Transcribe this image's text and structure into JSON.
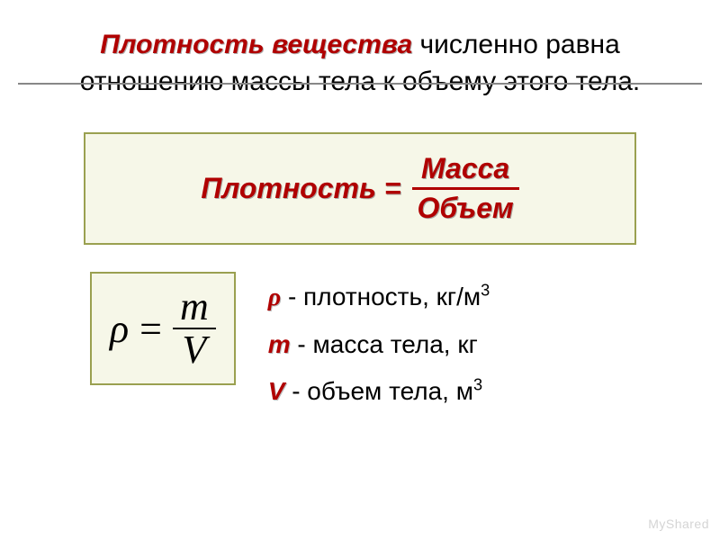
{
  "title": {
    "emphasis": "Плотность вещества",
    "rest": " численно равна отношению массы тела к объему этого тела."
  },
  "word_formula": {
    "lhs": "Плотность =",
    "numerator": "Масса",
    "denominator": "Объем",
    "box_bg": "#f6f7e8",
    "box_border": "#9aa050",
    "text_color": "#b00000"
  },
  "symbolic_formula": {
    "lhs": "ρ",
    "eq": "=",
    "numerator": "m",
    "denominator": "V",
    "box_bg": "#f6f7e8",
    "box_border": "#9aa050",
    "font": "Times New Roman"
  },
  "legend": {
    "rho": {
      "symbol": "ρ",
      "text": " - плотность, кг/м",
      "sup": "3"
    },
    "m": {
      "symbol": "m",
      "text": " - масса тела, кг"
    },
    "v": {
      "symbol": "V",
      "text": " - объем тела, м",
      "sup": "3"
    }
  },
  "colors": {
    "accent": "#b00000",
    "text": "#000000",
    "rule": "#888888",
    "background": "#ffffff"
  },
  "typography": {
    "title_fontsize_pt": 23,
    "wordbox_fontsize_pt": 24,
    "formula_fontsize_pt": 33,
    "legend_fontsize_pt": 21
  },
  "watermark": "MyShared"
}
